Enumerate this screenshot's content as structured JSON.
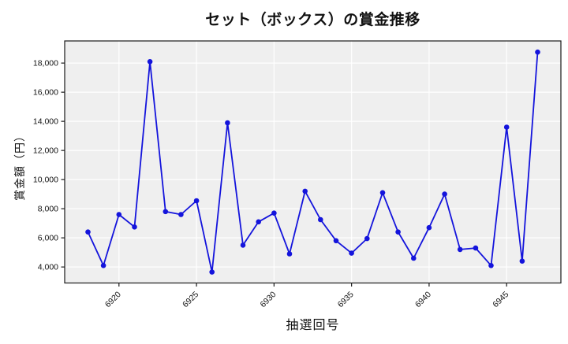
{
  "chart_data": {
    "type": "line",
    "title": "セット（ボックス）の賞金推移",
    "xlabel": "抽選回号",
    "ylabel": "賞金額（円）",
    "x": [
      6918,
      6919,
      6920,
      6921,
      6922,
      6923,
      6924,
      6925,
      6926,
      6927,
      6928,
      6929,
      6930,
      6931,
      6932,
      6933,
      6934,
      6935,
      6936,
      6937,
      6938,
      6939,
      6940,
      6941,
      6942,
      6943,
      6944,
      6945,
      6946,
      6947
    ],
    "values": [
      6400,
      4100,
      7600,
      6750,
      18100,
      7800,
      7600,
      8550,
      3650,
      13900,
      5500,
      7100,
      7700,
      4900,
      9200,
      7250,
      5800,
      4950,
      5950,
      9100,
      6400,
      4600,
      6700,
      9000,
      5200,
      5300,
      4100,
      13600,
      4400,
      18750
    ],
    "xlim": [
      6916.5,
      6948.5
    ],
    "ylim": [
      2900,
      19520
    ],
    "x_ticks": [
      6920,
      6925,
      6930,
      6935,
      6940,
      6945
    ],
    "x_tick_labels": [
      "6920",
      "6925",
      "6930",
      "6935",
      "6940",
      "6945"
    ],
    "y_ticks": [
      4000,
      6000,
      8000,
      10000,
      12000,
      14000,
      16000,
      18000
    ],
    "y_tick_labels": [
      "4,000",
      "6,000",
      "8,000",
      "10,000",
      "12,000",
      "14,000",
      "16,000",
      "18,000"
    ],
    "grid": true,
    "legend": "none",
    "line_color": "#1414dc",
    "marker_color": "#1414dc",
    "plot_bg_color": "#efefef",
    "grid_color": "#ffffff",
    "frame_color": "#1a1a1a",
    "tick_color": "#1a1a1a"
  }
}
